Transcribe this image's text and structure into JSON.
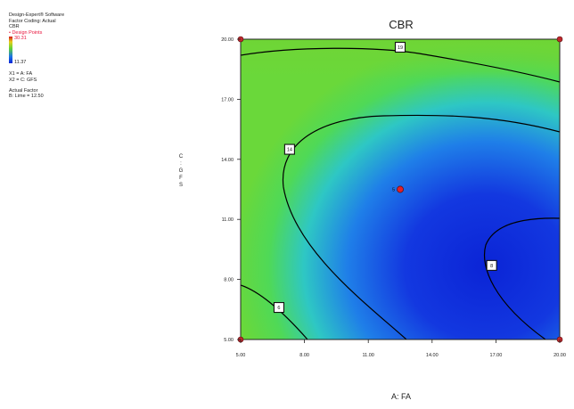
{
  "legend": {
    "lines": [
      "Design-Expert® Software",
      "Factor Coding: Actual",
      "CBR"
    ],
    "design_points_label": "• Design Points",
    "colorbar_high": "30.31",
    "colorbar_low": "11.37",
    "factor_lines": [
      "X1 = A: FA",
      "X2 = C: GFS"
    ],
    "actual_factor_title": "Actual Factor",
    "actual_factor_value": "B: Lime = 12.50",
    "side_axis_label": "C: GFS"
  },
  "chart_data": {
    "type": "contour",
    "title": "CBR",
    "xlabel": "A: FA",
    "x_ticks": [
      "5.00",
      "8.00",
      "11.00",
      "14.00",
      "17.00",
      "20.00"
    ],
    "y_ticks": [
      "5.00",
      "8.00",
      "11.00",
      "14.00",
      "17.00",
      "20.00"
    ],
    "xlim": [
      5,
      20
    ],
    "ylim": [
      5,
      20
    ],
    "colors": {
      "high": "#d4141c",
      "mid": "#5fd236",
      "low": "#0b24d6"
    },
    "design_points": [
      {
        "x": 12.5,
        "y": 19.6,
        "label": "19"
      },
      {
        "x": 7.3,
        "y": 14.5,
        "label": "14"
      },
      {
        "x": 16.8,
        "y": 8.7,
        "label": "8"
      },
      {
        "x": 6.8,
        "y": 6.6,
        "label": "6"
      }
    ],
    "center_point": {
      "x": 12.5,
      "y": 12.5,
      "label": "5"
    }
  }
}
